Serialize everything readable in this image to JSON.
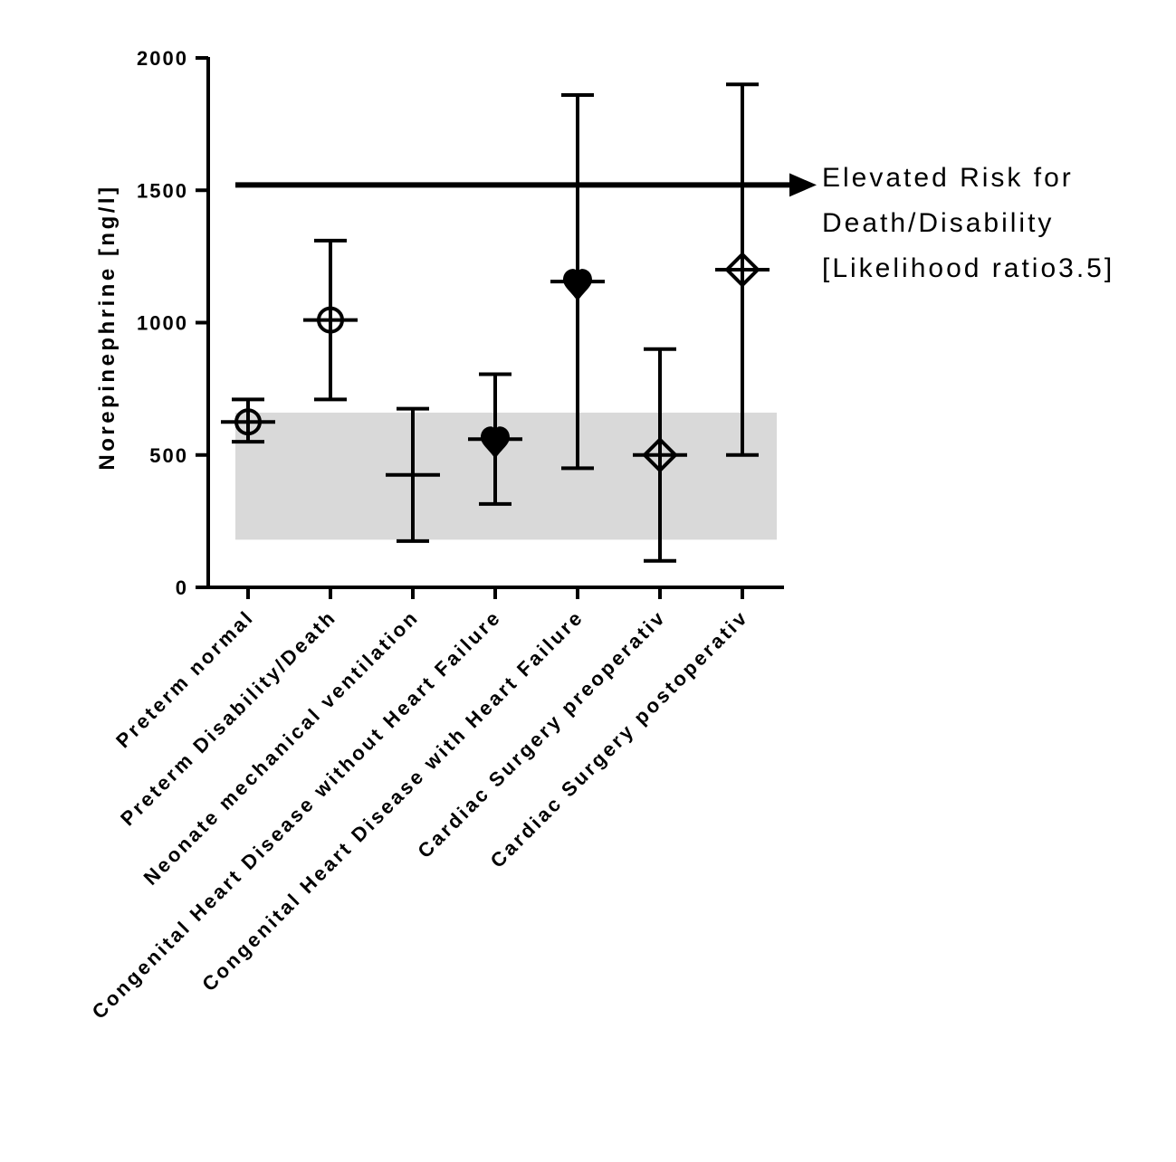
{
  "chart_data": {
    "type": "scatter",
    "ylabel": "Norepinephrine [ng/l]",
    "ylim": [
      0,
      2000
    ],
    "yticks": [
      0,
      500,
      1000,
      1500,
      2000
    ],
    "ytick_labels": [
      "0",
      "500",
      "1000",
      "1500",
      "2000"
    ],
    "grid": false,
    "reference_band": {
      "from": 180,
      "to": 660,
      "color": "#d9d9d9"
    },
    "threshold": {
      "value": 1520,
      "lines": [
        "Elevated Risk for",
        "Death/Disability",
        "[Likelihood ratio3.5]"
      ]
    },
    "categories": [
      "Preterm normal",
      "Preterm Disability/Death",
      "Neonate mechanical ventilation",
      "Congenital Heart Disease without Heart Failure",
      "Congenital Heart Disease with Heart Failure",
      "Cardiac Surgery preoperativ",
      "Cardiac Surgery postoperativ"
    ],
    "points": [
      {
        "category": "Preterm normal",
        "value": 625,
        "low": 550,
        "high": 710,
        "marker": "circle-open"
      },
      {
        "category": "Preterm Disability/Death",
        "value": 1010,
        "low": 710,
        "high": 1310,
        "marker": "circle-open"
      },
      {
        "category": "Neonate mechanical ventilation",
        "value": 425,
        "low": 175,
        "high": 675,
        "marker": "none"
      },
      {
        "category": "Congenital Heart Disease without Heart Failure",
        "value": 560,
        "low": 315,
        "high": 805,
        "marker": "heart-filled"
      },
      {
        "category": "Congenital Heart Disease with Heart Failure",
        "value": 1155,
        "low": 450,
        "high": 1860,
        "marker": "heart-filled"
      },
      {
        "category": "Cardiac Surgery preoperativ",
        "value": 500,
        "low": 100,
        "high": 900,
        "marker": "diamond-open"
      },
      {
        "category": "Cardiac Surgery postoperativ",
        "value": 1200,
        "low": 500,
        "high": 1900,
        "marker": "diamond-open"
      }
    ]
  }
}
